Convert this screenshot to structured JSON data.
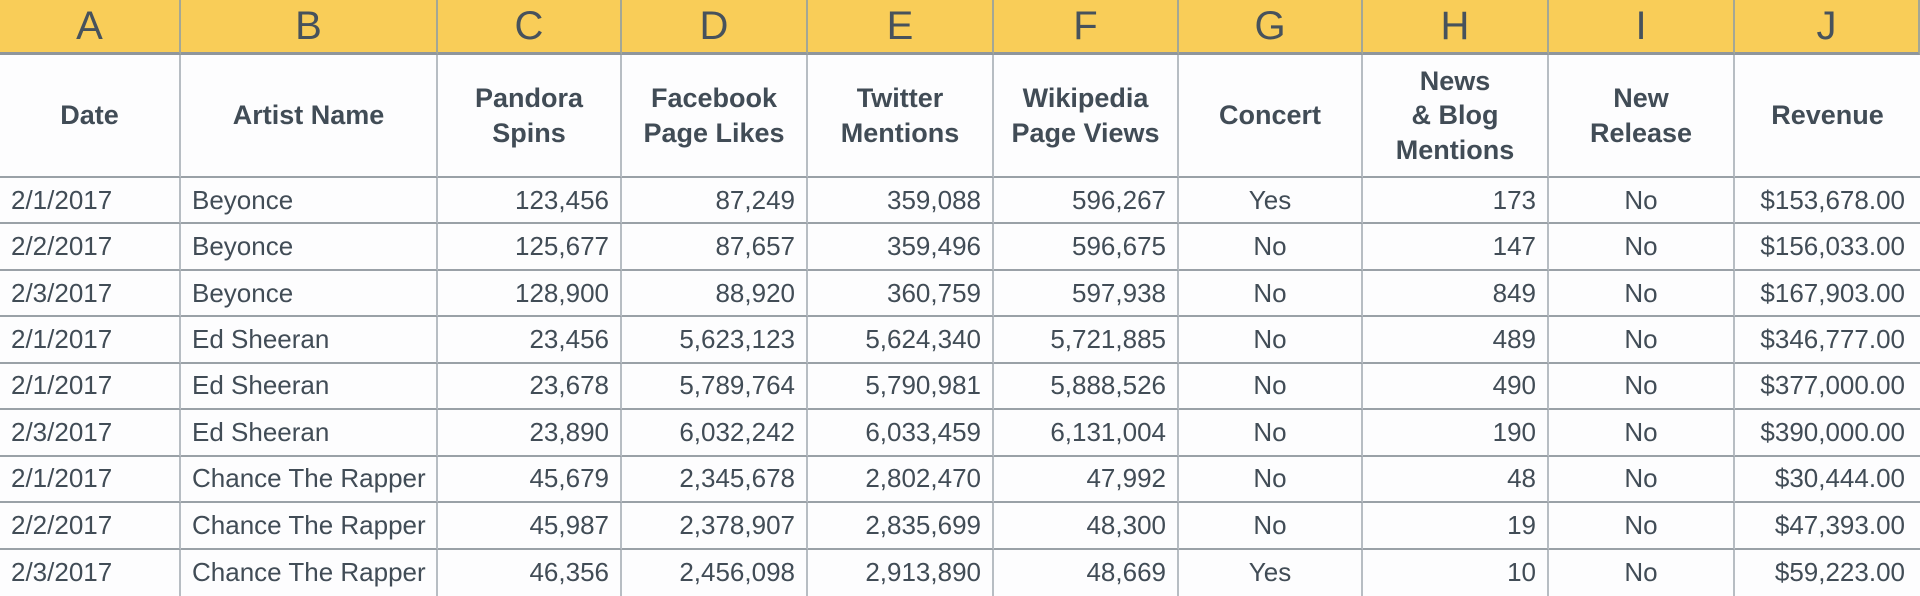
{
  "colors": {
    "header_fill": "#F9CD58",
    "text": "#414C56",
    "grid_line_vertical": "#B7BDC3",
    "grid_line_horizontal": "#9AA1A7"
  },
  "sheet": {
    "column_letters": [
      "A",
      "B",
      "C",
      "D",
      "E",
      "F",
      "G",
      "H",
      "I",
      "J"
    ],
    "headers": [
      "Date",
      "Artist Name",
      "Pandora\nSpins",
      "Facebook\nPage Likes",
      "Twitter\nMentions",
      "Wikipedia\nPage Views",
      "Concert",
      "News\n& Blog\nMentions",
      "New\nRelease",
      "Revenue"
    ],
    "rows": [
      [
        "2/1/2017",
        "Beyonce",
        "123,456",
        "87,249",
        "359,088",
        "596,267",
        "Yes",
        "173",
        "No",
        "$153,678.00"
      ],
      [
        "2/2/2017",
        "Beyonce",
        "125,677",
        "87,657",
        "359,496",
        "596,675",
        "No",
        "147",
        "No",
        "$156,033.00"
      ],
      [
        "2/3/2017",
        "Beyonce",
        "128,900",
        "88,920",
        "360,759",
        "597,938",
        "No",
        "849",
        "No",
        "$167,903.00"
      ],
      [
        "2/1/2017",
        "Ed Sheeran",
        "23,456",
        "5,623,123",
        "5,624,340",
        "5,721,885",
        "No",
        "489",
        "No",
        "$346,777.00"
      ],
      [
        "2/1/2017",
        "Ed Sheeran",
        "23,678",
        "5,789,764",
        "5,790,981",
        "5,888,526",
        "No",
        "490",
        "No",
        "$377,000.00"
      ],
      [
        "2/3/2017",
        "Ed Sheeran",
        "23,890",
        "6,032,242",
        "6,033,459",
        "6,131,004",
        "No",
        "190",
        "No",
        "$390,000.00"
      ],
      [
        "2/1/2017",
        "Chance The Rapper",
        "45,679",
        "2,345,678",
        "2,802,470",
        "47,992",
        "No",
        "48",
        "No",
        "$30,444.00"
      ],
      [
        "2/2/2017",
        "Chance The Rapper",
        "45,987",
        "2,378,907",
        "2,835,699",
        "48,300",
        "No",
        "19",
        "No",
        "$47,393.00"
      ],
      [
        "2/3/2017",
        "Chance The Rapper",
        "46,356",
        "2,456,098",
        "2,913,890",
        "48,669",
        "Yes",
        "10",
        "No",
        "$59,223.00"
      ]
    ]
  }
}
